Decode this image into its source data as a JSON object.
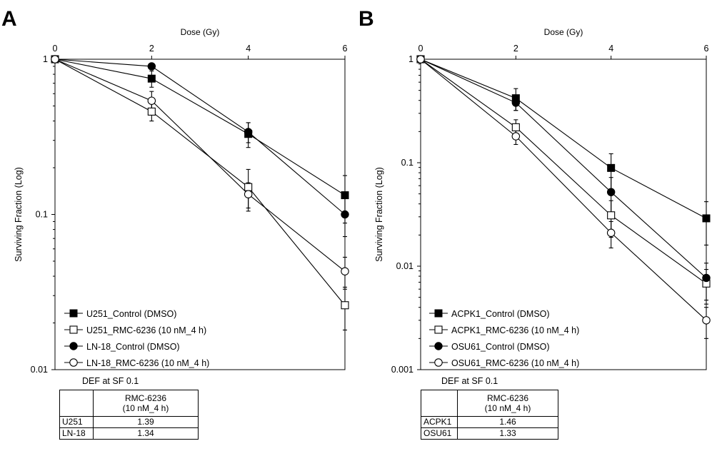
{
  "chart_data": [
    {
      "panel_label": "A",
      "type": "line",
      "xlabel": "Dose (Gy)",
      "ylabel": "Surviving Fraction (Log)",
      "x_ticks": [
        "0",
        "2",
        "4",
        "6"
      ],
      "y_ticks": [
        "1",
        "0.1",
        "0.01"
      ],
      "xlim": [
        0,
        6
      ],
      "ylim": [
        0.01,
        1
      ],
      "yscale": "log",
      "x_axis_position": "top",
      "legend_position": "bottom-left",
      "series": [
        {
          "name": "U251_Control (DMSO)",
          "marker": "square-filled",
          "x": [
            0,
            2,
            4,
            6
          ],
          "y": [
            1,
            0.75,
            0.33,
            0.133
          ],
          "err": [
            0,
            0.09,
            0.06,
            0.045
          ]
        },
        {
          "name": "U251_RMC-6236 (10 nM_4 h)",
          "marker": "square-open",
          "x": [
            0,
            2,
            4,
            6
          ],
          "y": [
            1,
            0.46,
            0.15,
            0.026
          ],
          "err": [
            0,
            0.06,
            0.045,
            0.008
          ]
        },
        {
          "name": "LN-18_Control (DMSO)",
          "marker": "circle-filled",
          "x": [
            0,
            2,
            4,
            6
          ],
          "y": [
            1,
            0.9,
            0.34,
            0.1
          ],
          "err": [
            0,
            0.0,
            0.05,
            0.028
          ]
        },
        {
          "name": "LN-18_RMC-6236 (10 nM_4 h)",
          "marker": "circle-open",
          "x": [
            0,
            2,
            4,
            6
          ],
          "y": [
            1,
            0.54,
            0.135,
            0.043
          ],
          "err": [
            0,
            0.08,
            0.025,
            0.01
          ]
        }
      ],
      "table": {
        "caption": "DEF at SF 0.1",
        "column_header": [
          "RMC-6236",
          "(10 nM_4 h)"
        ],
        "rows": [
          {
            "label": "U251",
            "value": "1.39"
          },
          {
            "label": "LN-18",
            "value": "1.34"
          }
        ]
      }
    },
    {
      "panel_label": "B",
      "type": "line",
      "xlabel": "Dose (Gy)",
      "ylabel": "Surviving Fraction (Log)",
      "x_ticks": [
        "0",
        "2",
        "4",
        "6"
      ],
      "y_ticks": [
        "1",
        "0.1",
        "0.01",
        "0.001"
      ],
      "xlim": [
        0,
        6
      ],
      "ylim": [
        0.001,
        1
      ],
      "yscale": "log",
      "x_axis_position": "top",
      "legend_position": "bottom-left",
      "series": [
        {
          "name": "ACPK1_Control (DMSO)",
          "marker": "square-filled",
          "x": [
            0,
            2,
            4,
            6
          ],
          "y": [
            1,
            0.42,
            0.089,
            0.029
          ],
          "err": [
            0,
            0.1,
            0.033,
            0.013
          ]
        },
        {
          "name": "ACPK1_RMC-6236 (10 nM_4 h)",
          "marker": "square-open",
          "x": [
            0,
            2,
            4,
            6
          ],
          "y": [
            1,
            0.22,
            0.031,
            0.0068
          ],
          "err": [
            0,
            0.04,
            0.012,
            0.0025
          ]
        },
        {
          "name": "OSU61_Control (DMSO)",
          "marker": "circle-filled",
          "x": [
            0,
            2,
            4,
            6
          ],
          "y": [
            1,
            0.38,
            0.052,
            0.0077
          ],
          "err": [
            0,
            0.06,
            0.02,
            0.003
          ]
        },
        {
          "name": "OSU61_RMC-6236 (10 nM_4 h)",
          "marker": "circle-open",
          "x": [
            0,
            2,
            4,
            6
          ],
          "y": [
            1,
            0.18,
            0.021,
            0.003
          ],
          "err": [
            0,
            0.03,
            0.006,
            0.001
          ]
        }
      ],
      "table": {
        "caption": "DEF at SF 0.1",
        "column_header": [
          "RMC-6236",
          "(10 nM_4 h)"
        ],
        "rows": [
          {
            "label": "ACPK1",
            "value": "1.46"
          },
          {
            "label": "OSU61",
            "value": "1.33"
          }
        ]
      }
    }
  ]
}
